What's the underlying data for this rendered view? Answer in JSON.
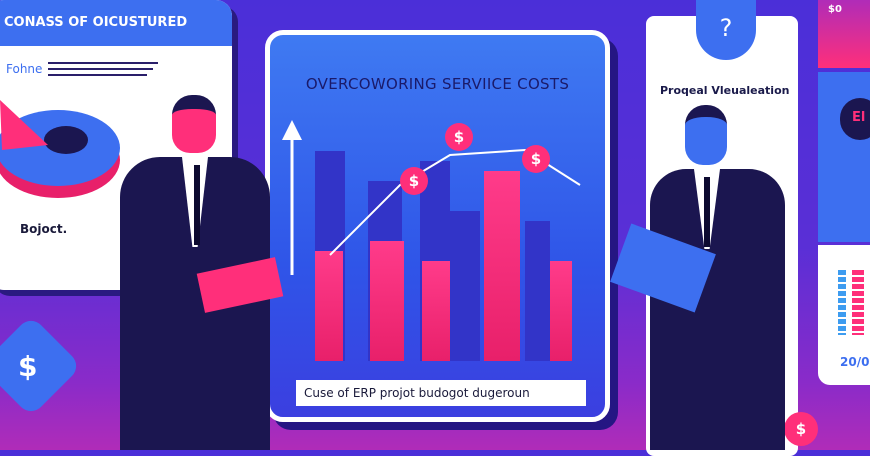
{
  "left_card": {
    "header": "CONASS OF OICUSTURED",
    "label": "Fohne",
    "footer": "Bojoct."
  },
  "center_card": {
    "title": "OVERCOWORING SERVIICE COSTS",
    "caption": "Cuse of ERP projot budogot dugeroun",
    "coin_symbol": "$"
  },
  "right_panel": {
    "badge": "?",
    "title": "Proqeal Vleualeation",
    "coin": "$"
  },
  "far_right": {
    "top_label": "$0",
    "badge": "El",
    "year": "20/0"
  },
  "left_badge": "$",
  "colors": {
    "background": "#4b2fd8",
    "accent_pink": "#ff2f7a",
    "accent_blue": "#3d6ff0",
    "suit": "#1b1650"
  }
}
